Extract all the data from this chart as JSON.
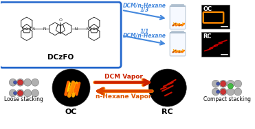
{
  "bg_color": "#ffffff",
  "box_color": "#2266cc",
  "molecule_label": "DCzFO",
  "ratio1_line1": "DCM/n-Hexane",
  "ratio1_line2": "1/3",
  "ratio2_line1": "1/1",
  "ratio2_line2": "DCM/n-Hexane",
  "label_OC": "OC",
  "label_RC": "RC",
  "label_loose": "Loose stacking",
  "label_compact": "Compact stacking",
  "label_DCM": "DCM Vapor",
  "label_hexane": "n-Hexane Vapor",
  "arrow_blue": "#4488dd",
  "arrow_red": "#cc2200",
  "arrow_orange": "#ff8800",
  "mol_color": "#222222",
  "jar_color": "#aabbcc",
  "crystal_orange": "#dd6600",
  "crystal_red": "#cc1100",
  "atom_gray": "#aaaaaa",
  "atom_gray_edge": "#666666",
  "atom_red": "#cc3333",
  "atom_blue": "#4444aa",
  "atom_green": "#44cc44"
}
